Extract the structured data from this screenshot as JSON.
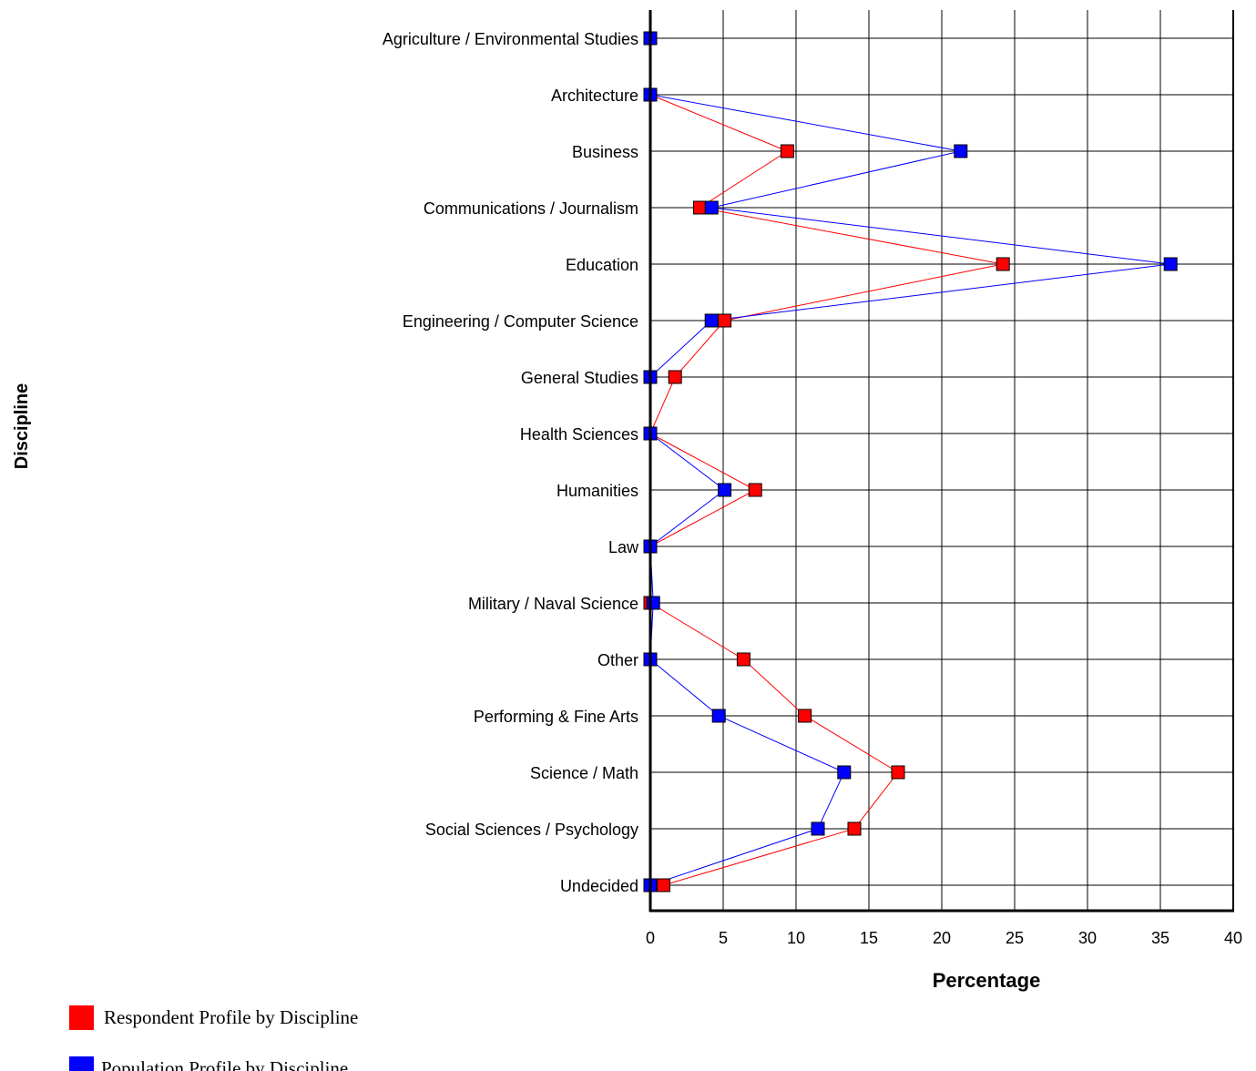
{
  "chart_data": {
    "type": "line",
    "orientation": "horizontal",
    "title": "",
    "xlabel": "Percentage",
    "ylabel": "Discipline",
    "xlim": [
      0,
      40
    ],
    "x_ticks": [
      0,
      5,
      10,
      15,
      20,
      25,
      30,
      35,
      40
    ],
    "grid": true,
    "legend_position": "bottom-left",
    "categories": [
      "Agriculture / Environmental Studies",
      "Architecture",
      "Business",
      "Communications / Journalism",
      "Education",
      "Engineering / Computer Science",
      "General Studies",
      "Health Sciences",
      "Humanities",
      "Law",
      "Military / Naval Science",
      "Other",
      "Performing & Fine Arts",
      "Science / Math",
      "Social Sciences / Psychology",
      "Undecided"
    ],
    "series": [
      {
        "name": "Respondent Profile by Discipline",
        "color": "#ff0000",
        "values": [
          0.0,
          0.0,
          9.4,
          3.4,
          24.2,
          5.1,
          1.7,
          0.0,
          7.2,
          0.0,
          0.0,
          6.4,
          10.6,
          17.0,
          14.0,
          0.9
        ]
      },
      {
        "name": "Population Profile by Discipline",
        "color": "#0000ff",
        "values": [
          0.0,
          0.0,
          21.3,
          4.2,
          35.7,
          4.2,
          0.0,
          0.0,
          5.1,
          0.0,
          0.2,
          0.0,
          4.7,
          13.3,
          11.5,
          0.0
        ]
      }
    ]
  }
}
